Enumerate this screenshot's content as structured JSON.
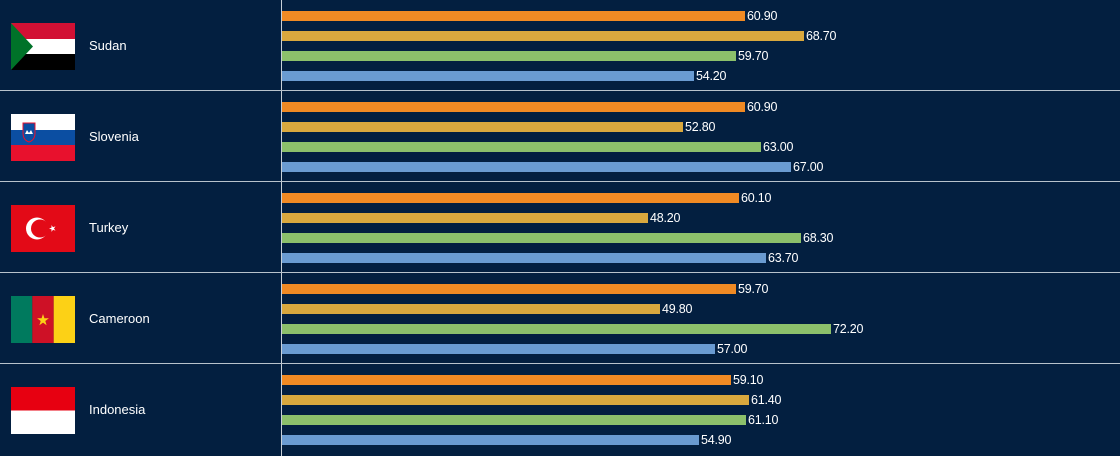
{
  "chart_data": {
    "type": "bar",
    "orientation": "horizontal",
    "title": "",
    "xlabel": "",
    "ylabel": "",
    "xlim": [
      0,
      90
    ],
    "grid": false,
    "series_colors": [
      "#f08a24",
      "#d9a83e",
      "#8cc06b",
      "#6a9bd1"
    ],
    "categories": [
      "Sudan",
      "Slovenia",
      "Turkey",
      "Cameroon",
      "Indonesia"
    ],
    "flags": [
      "sudan-flag",
      "slovenia-flag",
      "turkey-flag",
      "cameroon-flag",
      "indonesia-flag"
    ],
    "series": [
      {
        "values": [
          60.9,
          60.9,
          60.1,
          59.7,
          59.1
        ]
      },
      {
        "values": [
          68.7,
          52.8,
          48.2,
          49.8,
          61.4
        ]
      },
      {
        "values": [
          59.7,
          63.0,
          68.3,
          72.2,
          61.1
        ]
      },
      {
        "values": [
          54.2,
          67.0,
          63.7,
          57.0,
          54.9
        ]
      }
    ],
    "value_labels": [
      [
        "60.90",
        "68.70",
        "59.70",
        "54.20"
      ],
      [
        "60.90",
        "52.80",
        "63.00",
        "67.00"
      ],
      [
        "60.10",
        "48.20",
        "68.30",
        "63.70"
      ],
      [
        "59.70",
        "49.80",
        "72.20",
        "57.00"
      ],
      [
        "59.10",
        "61.40",
        "61.10",
        "54.90"
      ]
    ]
  }
}
